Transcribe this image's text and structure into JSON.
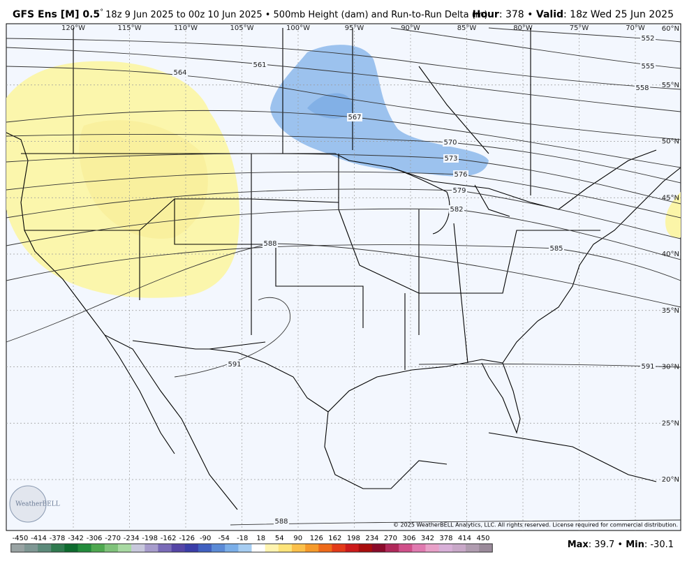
{
  "header": {
    "model": "GFS Ens [M] 0.5",
    "degree": "°",
    "run": "18z 9 Jun 2025 to 00z 10 Jun 2025 • 500mb Height (dam) and Run-to-Run Delta (m)",
    "hour_label": "Hour",
    "hour": ": 378 • ",
    "valid_label": "Valid",
    "valid": ": 18z Wed 25 Jun 2025"
  },
  "map": {
    "longitudes": [
      "120°W",
      "115°W",
      "110°W",
      "105°W",
      "100°W",
      "95°W",
      "90°W",
      "85°W",
      "80°W",
      "75°W",
      "70°W"
    ],
    "latitudes": [
      "60°N",
      "55°N",
      "50°N",
      "45°N",
      "40°N",
      "35°N",
      "30°N",
      "25°N",
      "20°N"
    ],
    "contour_labels": [
      "552",
      "555",
      "558",
      "561",
      "564",
      "567",
      "570",
      "573",
      "576",
      "579",
      "582",
      "585",
      "588",
      "591",
      "591",
      "588"
    ],
    "logo": "WeatherBELL",
    "credit": "© 2025 WeatherBELL Analytics, LLC. All rights reserved. License required for commercial distribution."
  },
  "colorbar": {
    "labels": [
      -450,
      -414,
      -378,
      -342,
      -306,
      -270,
      -234,
      -198,
      -162,
      -126,
      -90,
      -54,
      -18,
      18,
      54,
      90,
      126,
      162,
      198,
      234,
      270,
      306,
      342,
      378,
      414,
      450
    ]
  },
  "footer": {
    "max_label": "Max",
    "max": ": 39.7 • ",
    "min_label": "Min",
    "min": ": -30.1"
  }
}
